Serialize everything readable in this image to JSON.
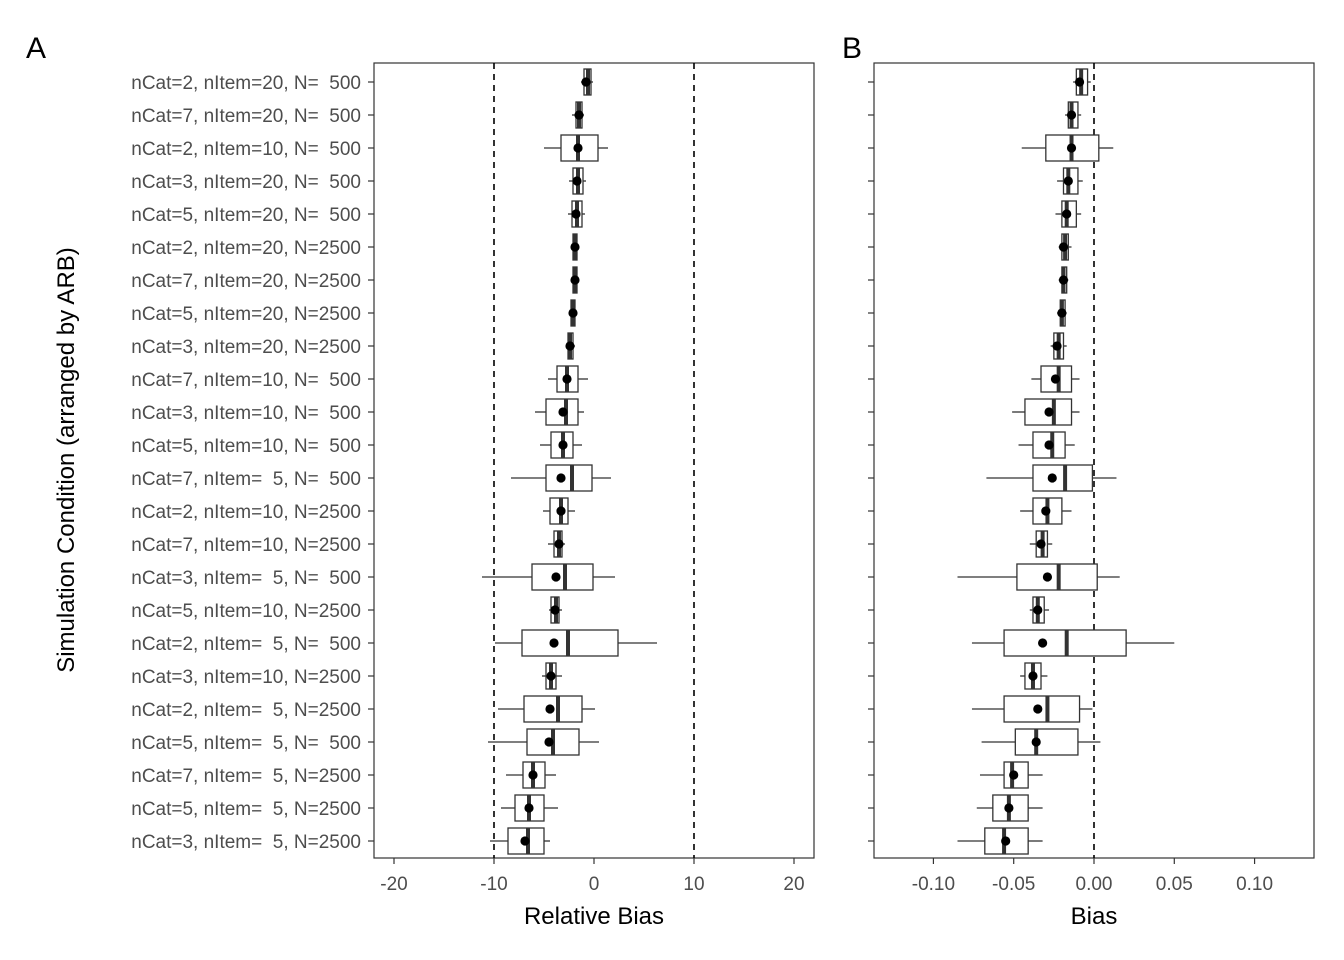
{
  "y_axis_title": "Simulation Condition (arranged by ARB)",
  "conditions": [
    "nCat=2, nItem=20, N=  500",
    "nCat=7, nItem=20, N=  500",
    "nCat=2, nItem=10, N=  500",
    "nCat=3, nItem=20, N=  500",
    "nCat=5, nItem=20, N=  500",
    "nCat=2, nItem=20, N=2500",
    "nCat=7, nItem=20, N=2500",
    "nCat=5, nItem=20, N=2500",
    "nCat=3, nItem=20, N=2500",
    "nCat=7, nItem=10, N=  500",
    "nCat=3, nItem=10, N=  500",
    "nCat=5, nItem=10, N=  500",
    "nCat=7, nItem=  5, N=  500",
    "nCat=2, nItem=10, N=2500",
    "nCat=7, nItem=10, N=2500",
    "nCat=3, nItem=  5, N=  500",
    "nCat=5, nItem=10, N=2500",
    "nCat=2, nItem=  5, N=  500",
    "nCat=3, nItem=10, N=2500",
    "nCat=2, nItem=  5, N=2500",
    "nCat=5, nItem=  5, N=  500",
    "nCat=7, nItem=  5, N=2500",
    "nCat=5, nItem=  5, N=2500",
    "nCat=3, nItem=  5, N=2500"
  ],
  "chart_data": [
    {
      "type": "boxplot",
      "panel_tag": "A",
      "xlabel": "Relative Bias",
      "xlim": [
        -22,
        22
      ],
      "xticks": [
        -20,
        -10,
        0,
        10,
        20
      ],
      "xtick_labels": [
        "-20",
        "-10",
        "0",
        "10",
        "20"
      ],
      "reference_lines": [
        -10,
        10
      ],
      "grid": false,
      "boxes": [
        {
          "wl": -1.3,
          "q1": -1.0,
          "median": -0.6,
          "q3": -0.3,
          "wh": -0.1,
          "mean": -0.8
        },
        {
          "wl": -2.2,
          "q1": -1.8,
          "median": -1.5,
          "q3": -1.2,
          "wh": -1.0,
          "mean": -1.5
        },
        {
          "wl": -5.0,
          "q1": -3.3,
          "median": -1.6,
          "q3": 0.4,
          "wh": 1.4,
          "mean": -1.6
        },
        {
          "wl": -2.5,
          "q1": -2.1,
          "median": -1.6,
          "q3": -1.1,
          "wh": -0.8,
          "mean": -1.7
        },
        {
          "wl": -2.6,
          "q1": -2.2,
          "median": -1.7,
          "q3": -1.2,
          "wh": -0.9,
          "mean": -1.8
        },
        {
          "wl": -2.3,
          "q1": -2.1,
          "median": -1.9,
          "q3": -1.7,
          "wh": -1.6,
          "mean": -1.9
        },
        {
          "wl": -2.3,
          "q1": -2.1,
          "median": -1.9,
          "q3": -1.7,
          "wh": -1.6,
          "mean": -1.9
        },
        {
          "wl": -2.5,
          "q1": -2.3,
          "median": -2.1,
          "q3": -1.9,
          "wh": -1.7,
          "mean": -2.1
        },
        {
          "wl": -2.8,
          "q1": -2.6,
          "median": -2.4,
          "q3": -2.1,
          "wh": -1.9,
          "mean": -2.4
        },
        {
          "wl": -4.6,
          "q1": -3.7,
          "median": -2.7,
          "q3": -1.6,
          "wh": -0.6,
          "mean": -2.7
        },
        {
          "wl": -5.9,
          "q1": -4.8,
          "median": -2.8,
          "q3": -1.6,
          "wh": -1.0,
          "mean": -3.1
        },
        {
          "wl": -5.4,
          "q1": -4.3,
          "median": -3.1,
          "q3": -2.1,
          "wh": -1.2,
          "mean": -3.1
        },
        {
          "wl": -8.3,
          "q1": -4.8,
          "median": -2.2,
          "q3": -0.2,
          "wh": 1.7,
          "mean": -3.3
        },
        {
          "wl": -5.1,
          "q1": -4.4,
          "median": -3.3,
          "q3": -2.6,
          "wh": -1.9,
          "mean": -3.3
        },
        {
          "wl": -4.6,
          "q1": -4.0,
          "median": -3.5,
          "q3": -3.2,
          "wh": -2.9,
          "mean": -3.5
        },
        {
          "wl": -11.2,
          "q1": -6.2,
          "median": -2.9,
          "q3": -0.1,
          "wh": 2.1,
          "mean": -3.8
        },
        {
          "wl": -4.5,
          "q1": -4.3,
          "median": -3.8,
          "q3": -3.5,
          "wh": -3.2,
          "mean": -3.9
        },
        {
          "wl": -9.9,
          "q1": -7.2,
          "median": -2.6,
          "q3": 2.4,
          "wh": 6.3,
          "mean": -4.0
        },
        {
          "wl": -5.2,
          "q1": -4.8,
          "median": -4.3,
          "q3": -3.8,
          "wh": -3.2,
          "mean": -4.3
        },
        {
          "wl": -9.6,
          "q1": -7.0,
          "median": -3.6,
          "q3": -1.2,
          "wh": 0.1,
          "mean": -4.4
        },
        {
          "wl": -10.6,
          "q1": -6.7,
          "median": -4.1,
          "q3": -1.5,
          "wh": 0.5,
          "mean": -4.5
        },
        {
          "wl": -8.8,
          "q1": -7.1,
          "median": -6.1,
          "q3": -4.9,
          "wh": -3.8,
          "mean": -6.1
        },
        {
          "wl": -9.3,
          "q1": -7.9,
          "median": -6.5,
          "q3": -5.0,
          "wh": -3.6,
          "mean": -6.5
        },
        {
          "wl": -10.4,
          "q1": -8.6,
          "median": -6.6,
          "q3": -5.0,
          "wh": -4.4,
          "mean": -6.9
        }
      ]
    },
    {
      "type": "boxplot",
      "panel_tag": "B",
      "xlabel": "Bias",
      "xlim": [
        -0.137,
        0.137
      ],
      "xticks": [
        -0.1,
        -0.05,
        0.0,
        0.05,
        0.1
      ],
      "xtick_labels": [
        "-0.10",
        "-0.05",
        "0.00",
        "0.05",
        "0.10"
      ],
      "reference_lines": [
        0
      ],
      "grid": false,
      "boxes": [
        {
          "wl": -0.013,
          "q1": -0.011,
          "median": -0.008,
          "q3": -0.004,
          "wh": -0.002,
          "mean": -0.009
        },
        {
          "wl": -0.018,
          "q1": -0.016,
          "median": -0.014,
          "q3": -0.01,
          "wh": -0.008,
          "mean": -0.014
        },
        {
          "wl": -0.045,
          "q1": -0.03,
          "median": -0.014,
          "q3": 0.003,
          "wh": 0.012,
          "mean": -0.014
        },
        {
          "wl": -0.023,
          "q1": -0.019,
          "median": -0.016,
          "q3": -0.01,
          "wh": -0.007,
          "mean": -0.016
        },
        {
          "wl": -0.024,
          "q1": -0.02,
          "median": -0.017,
          "q3": -0.011,
          "wh": -0.008,
          "mean": -0.017
        },
        {
          "wl": -0.022,
          "q1": -0.02,
          "median": -0.018,
          "q3": -0.016,
          "wh": -0.014,
          "mean": -0.019
        },
        {
          "wl": -0.022,
          "q1": -0.02,
          "median": -0.019,
          "q3": -0.017,
          "wh": -0.016,
          "mean": -0.019
        },
        {
          "wl": -0.023,
          "q1": -0.021,
          "median": -0.02,
          "q3": -0.018,
          "wh": -0.017,
          "mean": -0.02
        },
        {
          "wl": -0.027,
          "q1": -0.025,
          "median": -0.022,
          "q3": -0.019,
          "wh": -0.017,
          "mean": -0.023
        },
        {
          "wl": -0.039,
          "q1": -0.033,
          "median": -0.022,
          "q3": -0.014,
          "wh": -0.009,
          "mean": -0.024
        },
        {
          "wl": -0.051,
          "q1": -0.043,
          "median": -0.025,
          "q3": -0.014,
          "wh": -0.009,
          "mean": -0.028
        },
        {
          "wl": -0.047,
          "q1": -0.038,
          "median": -0.026,
          "q3": -0.018,
          "wh": -0.012,
          "mean": -0.028
        },
        {
          "wl": -0.067,
          "q1": -0.038,
          "median": -0.018,
          "q3": -0.001,
          "wh": 0.014,
          "mean": -0.026
        },
        {
          "wl": -0.046,
          "q1": -0.038,
          "median": -0.029,
          "q3": -0.02,
          "wh": -0.014,
          "mean": -0.03
        },
        {
          "wl": -0.04,
          "q1": -0.036,
          "median": -0.032,
          "q3": -0.029,
          "wh": -0.026,
          "mean": -0.033
        },
        {
          "wl": -0.085,
          "q1": -0.048,
          "median": -0.022,
          "q3": 0.002,
          "wh": 0.016,
          "mean": -0.029
        },
        {
          "wl": -0.04,
          "q1": -0.038,
          "median": -0.035,
          "q3": -0.031,
          "wh": -0.028,
          "mean": -0.035
        },
        {
          "wl": -0.076,
          "q1": -0.056,
          "median": -0.017,
          "q3": 0.02,
          "wh": 0.05,
          "mean": -0.032
        },
        {
          "wl": -0.046,
          "q1": -0.043,
          "median": -0.038,
          "q3": -0.033,
          "wh": -0.029,
          "mean": -0.038
        },
        {
          "wl": -0.076,
          "q1": -0.056,
          "median": -0.029,
          "q3": -0.009,
          "wh": -0.001,
          "mean": -0.035
        },
        {
          "wl": -0.07,
          "q1": -0.049,
          "median": -0.036,
          "q3": -0.01,
          "wh": 0.004,
          "mean": -0.036
        },
        {
          "wl": -0.071,
          "q1": -0.056,
          "median": -0.051,
          "q3": -0.041,
          "wh": -0.032,
          "mean": -0.05
        },
        {
          "wl": -0.073,
          "q1": -0.063,
          "median": -0.053,
          "q3": -0.041,
          "wh": -0.032,
          "mean": -0.053
        },
        {
          "wl": -0.085,
          "q1": -0.068,
          "median": -0.056,
          "q3": -0.041,
          "wh": -0.032,
          "mean": -0.055
        }
      ]
    }
  ]
}
